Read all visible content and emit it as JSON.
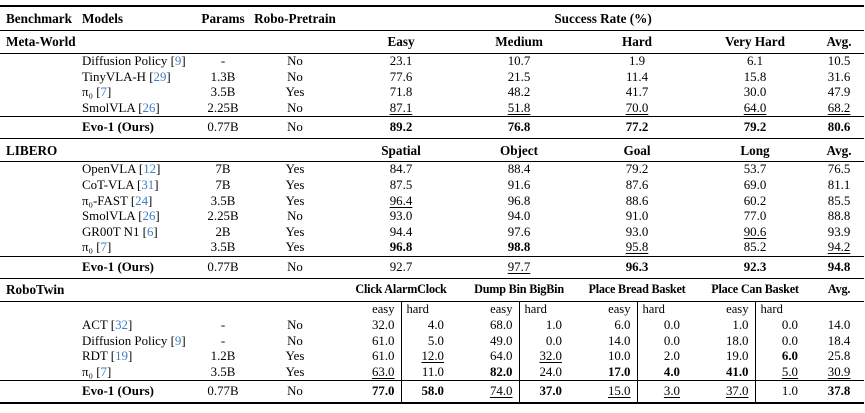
{
  "colors": {
    "citation_blue": "#3d7dc2",
    "text": "#000000",
    "rule": "#000000",
    "background": "#ffffff"
  },
  "header": {
    "benchmark": "Benchmark",
    "models": "Models",
    "params": "Params",
    "robo_pretrain": "Robo-Pretrain",
    "success_rate": "Success Rate (%)"
  },
  "sections": [
    {
      "benchmark": "Meta-World",
      "paired": false,
      "columns": [
        "Easy",
        "Medium",
        "Hard",
        "Very Hard",
        "Avg."
      ],
      "rows": [
        {
          "name": "Diffusion Policy",
          "cite": "9",
          "params": "-",
          "pretrain": "No",
          "values": [
            {
              "t": "23.1"
            },
            {
              "t": "10.7"
            },
            {
              "t": "1.9"
            },
            {
              "t": "6.1"
            },
            {
              "t": "10.5"
            }
          ]
        },
        {
          "name": "TinyVLA-H",
          "cite": "29",
          "params": "1.3B",
          "pretrain": "No",
          "values": [
            {
              "t": "77.6"
            },
            {
              "t": "21.5"
            },
            {
              "t": "11.4"
            },
            {
              "t": "15.8"
            },
            {
              "t": "31.6"
            }
          ]
        },
        {
          "name": "π₀",
          "cite": "7",
          "params": "3.5B",
          "pretrain": "Yes",
          "values": [
            {
              "t": "71.8"
            },
            {
              "t": "48.2"
            },
            {
              "t": "41.7"
            },
            {
              "t": "30.0"
            },
            {
              "t": "47.9"
            }
          ]
        },
        {
          "name": "SmolVLA",
          "cite": "26",
          "params": "2.25B",
          "pretrain": "No",
          "values": [
            {
              "t": "87.1",
              "u": true
            },
            {
              "t": "51.8",
              "u": true
            },
            {
              "t": "70.0",
              "u": true
            },
            {
              "t": "64.0",
              "u": true
            },
            {
              "t": "68.2",
              "u": true
            }
          ]
        }
      ],
      "final_row": {
        "name": "Evo-1 (Ours)",
        "cite": null,
        "params": "0.77B",
        "pretrain": "No",
        "values": [
          {
            "t": "89.2",
            "b": true
          },
          {
            "t": "76.8",
            "b": true
          },
          {
            "t": "77.2",
            "b": true
          },
          {
            "t": "79.2",
            "b": true
          },
          {
            "t": "80.6",
            "b": true
          }
        ]
      }
    },
    {
      "benchmark": "LIBERO",
      "paired": false,
      "columns": [
        "Spatial",
        "Object",
        "Goal",
        "Long",
        "Avg."
      ],
      "rows": [
        {
          "name": "OpenVLA",
          "cite": "12",
          "params": "7B",
          "pretrain": "Yes",
          "values": [
            {
              "t": "84.7"
            },
            {
              "t": "88.4"
            },
            {
              "t": "79.2"
            },
            {
              "t": "53.7"
            },
            {
              "t": "76.5"
            }
          ]
        },
        {
          "name": "CoT-VLA",
          "cite": "31",
          "params": "7B",
          "pretrain": "Yes",
          "values": [
            {
              "t": "87.5"
            },
            {
              "t": "91.6"
            },
            {
              "t": "87.6"
            },
            {
              "t": "69.0"
            },
            {
              "t": "81.1"
            }
          ]
        },
        {
          "name": "π₀-FAST",
          "cite": "24",
          "params": "3.5B",
          "pretrain": "Yes",
          "values": [
            {
              "t": "96.4",
              "u": true
            },
            {
              "t": "96.8"
            },
            {
              "t": "88.6"
            },
            {
              "t": "60.2"
            },
            {
              "t": "85.5"
            }
          ]
        },
        {
          "name": "SmolVLA",
          "cite": "26",
          "params": "2.25B",
          "pretrain": "No",
          "values": [
            {
              "t": "93.0"
            },
            {
              "t": "94.0"
            },
            {
              "t": "91.0"
            },
            {
              "t": "77.0"
            },
            {
              "t": "88.8"
            }
          ]
        },
        {
          "name": "GR00T N1",
          "cite": "6",
          "params": "2B",
          "pretrain": "Yes",
          "values": [
            {
              "t": "94.4"
            },
            {
              "t": "97.6"
            },
            {
              "t": "93.0"
            },
            {
              "t": "90.6",
              "u": true
            },
            {
              "t": "93.9"
            }
          ]
        },
        {
          "name": "π₀",
          "cite": "7",
          "params": "3.5B",
          "pretrain": "Yes",
          "values": [
            {
              "t": "96.8",
              "b": true
            },
            {
              "t": "98.8",
              "b": true
            },
            {
              "t": "95.8",
              "u": true
            },
            {
              "t": "85.2"
            },
            {
              "t": "94.2",
              "u": true
            }
          ]
        }
      ],
      "final_row": {
        "name": "Evo-1 (Ours)",
        "cite": null,
        "params": "0.77B",
        "pretrain": "No",
        "values": [
          {
            "t": "92.7"
          },
          {
            "t": "97.7",
            "u": true
          },
          {
            "t": "96.3",
            "b": true
          },
          {
            "t": "92.3",
            "b": true
          },
          {
            "t": "94.8",
            "b": true
          }
        ]
      }
    },
    {
      "benchmark": "RoboTwin",
      "paired": true,
      "columns": [
        "Click AlarmClock",
        "Dump Bin BigBin",
        "Place Bread Basket",
        "Place Can Basket",
        "Avg."
      ],
      "subcolumns": [
        "easy",
        "hard"
      ],
      "rows": [
        {
          "name": "ACT",
          "cite": "32",
          "params": "-",
          "pretrain": "No",
          "values": [
            {
              "t": "32.0"
            },
            {
              "t": "4.0"
            },
            {
              "t": "68.0"
            },
            {
              "t": "1.0"
            },
            {
              "t": "6.0"
            },
            {
              "t": "0.0"
            },
            {
              "t": "1.0"
            },
            {
              "t": "0.0"
            },
            {
              "t": "14.0"
            }
          ]
        },
        {
          "name": "Diffusion Policy",
          "cite": "9",
          "params": "-",
          "pretrain": "No",
          "values": [
            {
              "t": "61.0"
            },
            {
              "t": "5.0"
            },
            {
              "t": "49.0"
            },
            {
              "t": "0.0"
            },
            {
              "t": "14.0"
            },
            {
              "t": "0.0"
            },
            {
              "t": "18.0"
            },
            {
              "t": "0.0"
            },
            {
              "t": "18.4"
            }
          ]
        },
        {
          "name": "RDT",
          "cite": "19",
          "params": "1.2B",
          "pretrain": "Yes",
          "values": [
            {
              "t": "61.0"
            },
            {
              "t": "12.0",
              "u": true
            },
            {
              "t": "64.0"
            },
            {
              "t": "32.0",
              "u": true
            },
            {
              "t": "10.0"
            },
            {
              "t": "2.0"
            },
            {
              "t": "19.0"
            },
            {
              "t": "6.0",
              "b": true
            },
            {
              "t": "25.8"
            }
          ]
        },
        {
          "name": "π₀",
          "cite": "7",
          "params": "3.5B",
          "pretrain": "Yes",
          "values": [
            {
              "t": "63.0",
              "u": true
            },
            {
              "t": "11.0"
            },
            {
              "t": "82.0",
              "b": true
            },
            {
              "t": "24.0"
            },
            {
              "t": "17.0",
              "b": true
            },
            {
              "t": "4.0",
              "b": true
            },
            {
              "t": "41.0",
              "b": true
            },
            {
              "t": "5.0",
              "u": true
            },
            {
              "t": "30.9",
              "u": true
            }
          ]
        }
      ],
      "final_row": {
        "name": "Evo-1 (Ours)",
        "cite": null,
        "params": "0.77B",
        "pretrain": "No",
        "values": [
          {
            "t": "77.0",
            "b": true
          },
          {
            "t": "58.0",
            "b": true
          },
          {
            "t": "74.0",
            "u": true
          },
          {
            "t": "37.0",
            "b": true
          },
          {
            "t": "15.0",
            "u": true
          },
          {
            "t": "3.0",
            "u": true
          },
          {
            "t": "37.0",
            "u": true
          },
          {
            "t": "1.0"
          },
          {
            "t": "37.8",
            "b": true
          }
        ]
      }
    }
  ]
}
